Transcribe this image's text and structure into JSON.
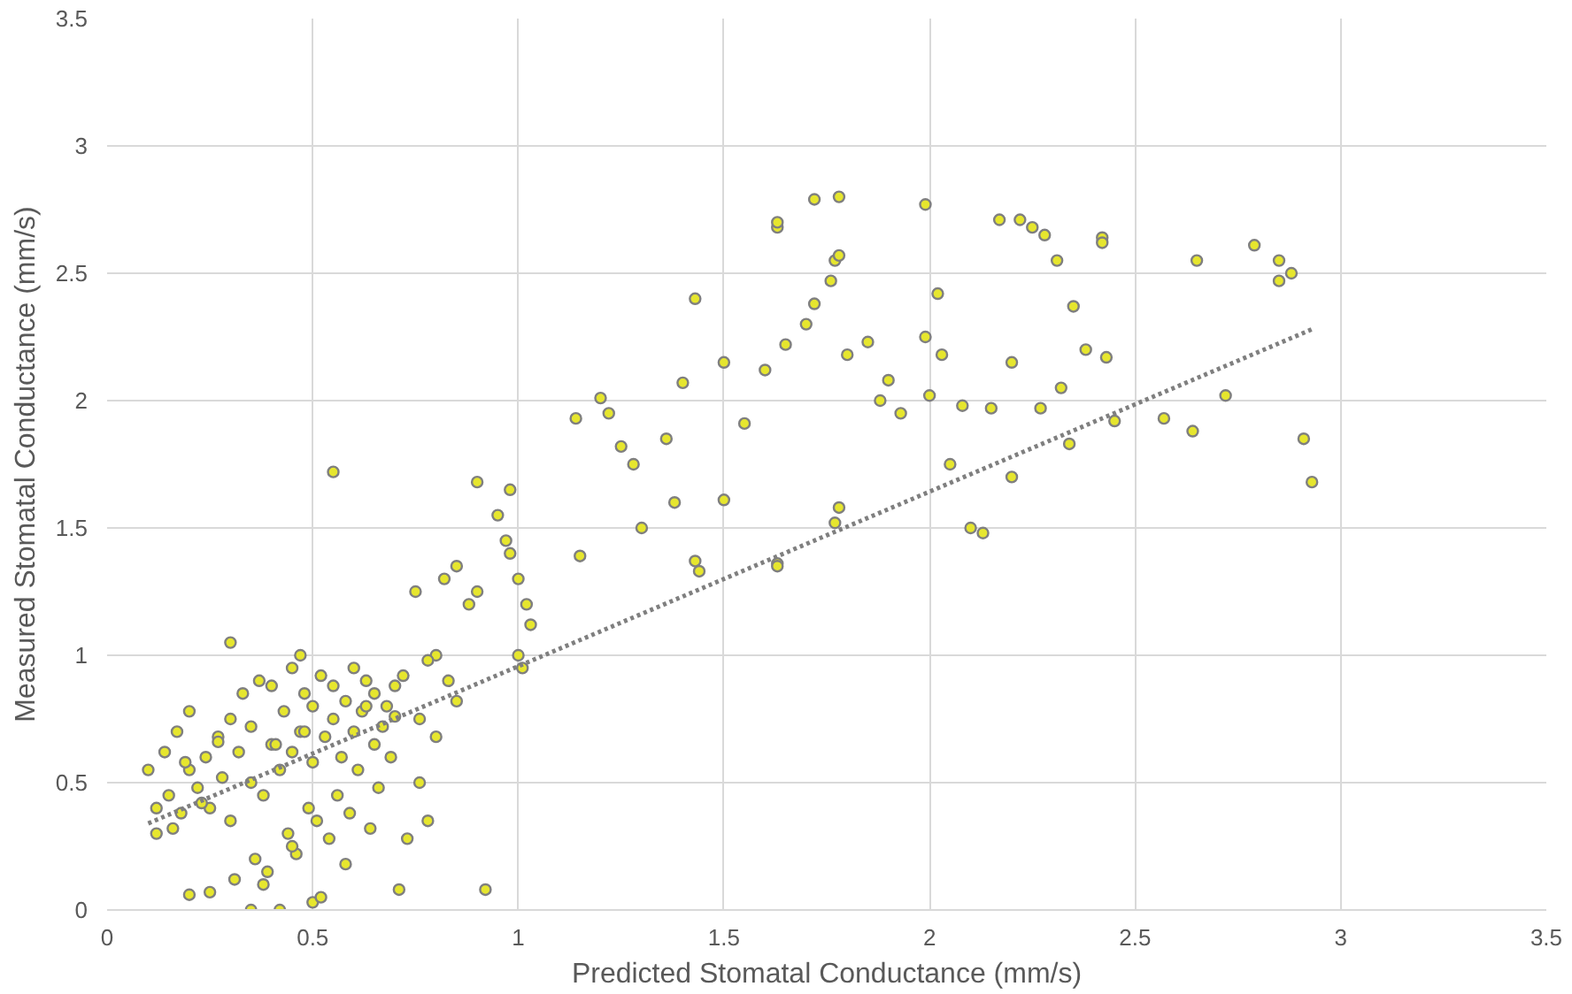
{
  "chart_data": {
    "type": "scatter",
    "xlabel": "Predicted Stomatal Conductance (mm/s)",
    "ylabel": "Measured Stomatal Conductance (mm/s)",
    "xlim": [
      0,
      3.5
    ],
    "ylim": [
      0,
      3.5
    ],
    "xticks": [
      0,
      0.5,
      1,
      1.5,
      2,
      2.5,
      3,
      3.5
    ],
    "yticks": [
      0,
      0.5,
      1,
      1.5,
      2,
      2.5,
      3,
      3.5
    ],
    "grid": true,
    "series": [
      {
        "color": "#e6e62e",
        "marker": "circle",
        "x": [
          0.55,
          0.92,
          0.2,
          0.25,
          0.35,
          0.42,
          0.5,
          0.3,
          0.47,
          1.43,
          1.63,
          1.63,
          1.72,
          1.78,
          1.99,
          2.17,
          2.22,
          2.25,
          2.28,
          2.42,
          2.42,
          2.79,
          2.85,
          2.88,
          2.85,
          2.65,
          2.31,
          2.02,
          1.77,
          1.78,
          1.76,
          1.63,
          1.63,
          1.43,
          1.44,
          2.1,
          2.13,
          2.91,
          2.93,
          2.72,
          2.57,
          2.64,
          2.2,
          2.34,
          2.05,
          1.78,
          1.77,
          1.5,
          1.38,
          1.3,
          1.15,
          1.14,
          1.2,
          1.22,
          1.25,
          1.28,
          1.36,
          1.4,
          1.5,
          1.55,
          1.6,
          1.65,
          1.7,
          1.72,
          1.8,
          1.85,
          1.88,
          1.9,
          1.93,
          1.99,
          2.0,
          2.03,
          2.08,
          2.15,
          2.2,
          2.27,
          2.32,
          2.38,
          2.43,
          2.45,
          2.35,
          0.9,
          0.98,
          0.95,
          0.97,
          0.98,
          1.0,
          1.02,
          1.0,
          1.01,
          1.03,
          0.85,
          0.88,
          0.9,
          0.82,
          0.75,
          0.8,
          0.83,
          0.85,
          0.78,
          0.76,
          0.8,
          0.76,
          0.78,
          0.1,
          0.12,
          0.14,
          0.15,
          0.17,
          0.18,
          0.2,
          0.2,
          0.22,
          0.24,
          0.25,
          0.27,
          0.28,
          0.3,
          0.3,
          0.32,
          0.33,
          0.35,
          0.35,
          0.37,
          0.38,
          0.4,
          0.4,
          0.42,
          0.43,
          0.45,
          0.45,
          0.47,
          0.48,
          0.5,
          0.5,
          0.52,
          0.53,
          0.55,
          0.55,
          0.57,
          0.58,
          0.6,
          0.6,
          0.62,
          0.63,
          0.65,
          0.65,
          0.67,
          0.68,
          0.7,
          0.7,
          0.72,
          0.73,
          0.12,
          0.16,
          0.19,
          0.23,
          0.27,
          0.31,
          0.36,
          0.39,
          0.44,
          0.46,
          0.49,
          0.51,
          0.54,
          0.56,
          0.59,
          0.61,
          0.64,
          0.66,
          0.69,
          0.71,
          0.38,
          0.45,
          0.52,
          0.58,
          0.63,
          0.41,
          0.48
        ],
        "values": [
          1.72,
          0.08,
          0.06,
          0.07,
          0.0,
          0.0,
          0.03,
          1.05,
          1.0,
          2.4,
          2.68,
          2.7,
          2.79,
          2.8,
          2.77,
          2.71,
          2.71,
          2.68,
          2.65,
          2.64,
          2.62,
          2.61,
          2.55,
          2.5,
          2.47,
          2.55,
          2.55,
          2.42,
          2.55,
          2.57,
          2.47,
          1.36,
          1.35,
          1.37,
          1.33,
          1.5,
          1.48,
          1.85,
          1.68,
          2.02,
          1.93,
          1.88,
          1.7,
          1.83,
          1.75,
          1.58,
          1.52,
          1.61,
          1.6,
          1.5,
          1.39,
          1.93,
          2.01,
          1.95,
          1.82,
          1.75,
          1.85,
          2.07,
          2.15,
          1.91,
          2.12,
          2.22,
          2.3,
          2.38,
          2.18,
          2.23,
          2.0,
          2.08,
          1.95,
          2.25,
          2.02,
          2.18,
          1.98,
          1.97,
          2.15,
          1.97,
          2.05,
          2.2,
          2.17,
          1.92,
          2.37,
          1.68,
          1.65,
          1.55,
          1.45,
          1.4,
          1.3,
          1.2,
          1.0,
          0.95,
          1.12,
          1.35,
          1.2,
          1.25,
          1.3,
          1.25,
          1.0,
          0.9,
          0.82,
          0.98,
          0.75,
          0.68,
          0.5,
          0.35,
          0.55,
          0.3,
          0.62,
          0.45,
          0.7,
          0.38,
          0.55,
          0.78,
          0.48,
          0.6,
          0.4,
          0.68,
          0.52,
          0.75,
          0.35,
          0.62,
          0.85,
          0.5,
          0.72,
          0.9,
          0.45,
          0.65,
          0.88,
          0.55,
          0.78,
          0.95,
          0.62,
          0.7,
          0.85,
          0.58,
          0.8,
          0.92,
          0.68,
          0.75,
          0.88,
          0.6,
          0.82,
          0.95,
          0.7,
          0.78,
          0.9,
          0.65,
          0.85,
          0.72,
          0.8,
          0.88,
          0.76,
          0.92,
          0.28,
          0.4,
          0.32,
          0.58,
          0.42,
          0.66,
          0.12,
          0.2,
          0.15,
          0.3,
          0.22,
          0.4,
          0.35,
          0.28,
          0.45,
          0.38,
          0.55,
          0.32,
          0.48,
          0.6,
          0.08,
          0.1,
          0.25,
          0.05,
          0.18,
          0.8,
          0.65,
          0.7
        ]
      },
      {
        "type": "line",
        "color": "#7f7f7f",
        "line_style": "dotted",
        "marker": "none",
        "x": [
          0.1,
          2.93
        ],
        "values": [
          0.34,
          2.28
        ]
      }
    ]
  }
}
